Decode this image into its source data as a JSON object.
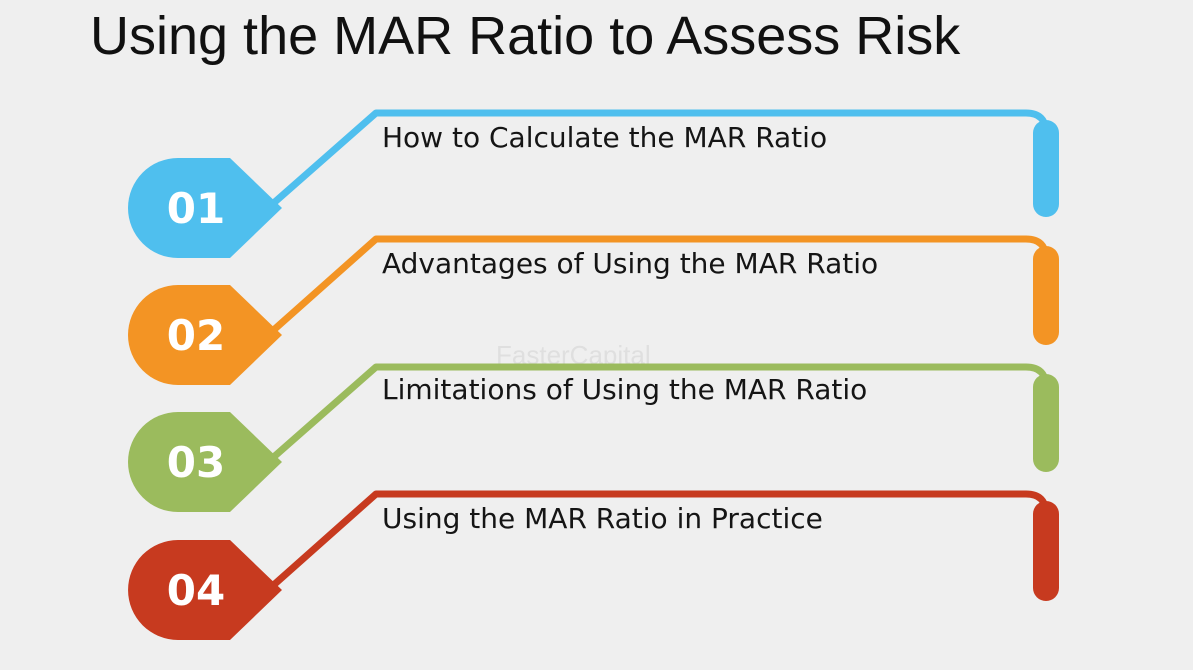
{
  "title": "Using the MAR Ratio to Assess Risk",
  "watermark": "FasterCapital",
  "items": [
    {
      "number": "01",
      "label": "How to Calculate the MAR Ratio",
      "color": "#4fbfee"
    },
    {
      "number": "02",
      "label": "Advantages of Using the MAR Ratio",
      "color": "#f39424"
    },
    {
      "number": "03",
      "label": "Limitations of Using the MAR Ratio",
      "color": "#9bbb5d"
    },
    {
      "number": "04",
      "label": "Using the MAR Ratio in Practice",
      "color": "#c73a1f"
    }
  ]
}
